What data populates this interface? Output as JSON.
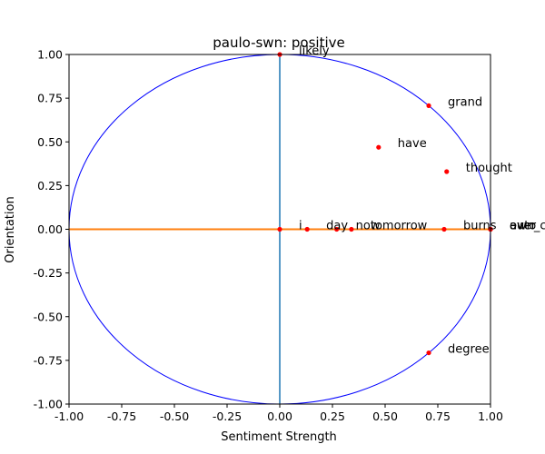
{
  "chart_data": {
    "type": "scatter",
    "title": "paulo-swn: positive",
    "xlabel": "Sentiment Strength",
    "ylabel": "Orientation",
    "xlim": [
      -1.0,
      1.0
    ],
    "ylim": [
      -1.0,
      1.0
    ],
    "x_ticks": [
      "-1.00",
      "-0.75",
      "-0.50",
      "-0.25",
      "0.00",
      "0.25",
      "0.50",
      "0.75",
      "1.00"
    ],
    "y_ticks": [
      "1.00",
      "0.75",
      "0.50",
      "0.25",
      "0.00",
      "-0.25",
      "-0.50",
      "-0.75",
      "-1.00"
    ],
    "grid": false,
    "unit_circle": true,
    "colors": {
      "points": "#ff0000",
      "circle": "#0000ff",
      "vertical_line": "#1f77b4",
      "horizontal_line": "#ff7f0e",
      "frame": "#000000"
    },
    "points": [
      {
        "label": "likely",
        "x": 0.0,
        "y": 1.0
      },
      {
        "label": "grand",
        "x": 0.707,
        "y": 0.707
      },
      {
        "label": "have",
        "x": 0.469,
        "y": 0.469
      },
      {
        "label": "thought",
        "x": 0.792,
        "y": 0.33
      },
      {
        "label": "i",
        "x": 0.0,
        "y": 0.0
      },
      {
        "label": "day",
        "x": 0.13,
        "y": 0.0
      },
      {
        "label": "now",
        "x": 0.27,
        "y": 0.0
      },
      {
        "label": "tomorrow",
        "x": 0.34,
        "y": 0.0
      },
      {
        "label": "burns",
        "x": 0.78,
        "y": 0.0
      },
      {
        "label": "auto",
        "x": 1.0,
        "y": 0.0
      },
      {
        "label": "ever",
        "x": 1.0,
        "y": 0.0
      },
      {
        "label": "own_c",
        "x": 1.0,
        "y": 0.0
      },
      {
        "label": "degree",
        "x": 0.707,
        "y": -0.707
      }
    ]
  }
}
